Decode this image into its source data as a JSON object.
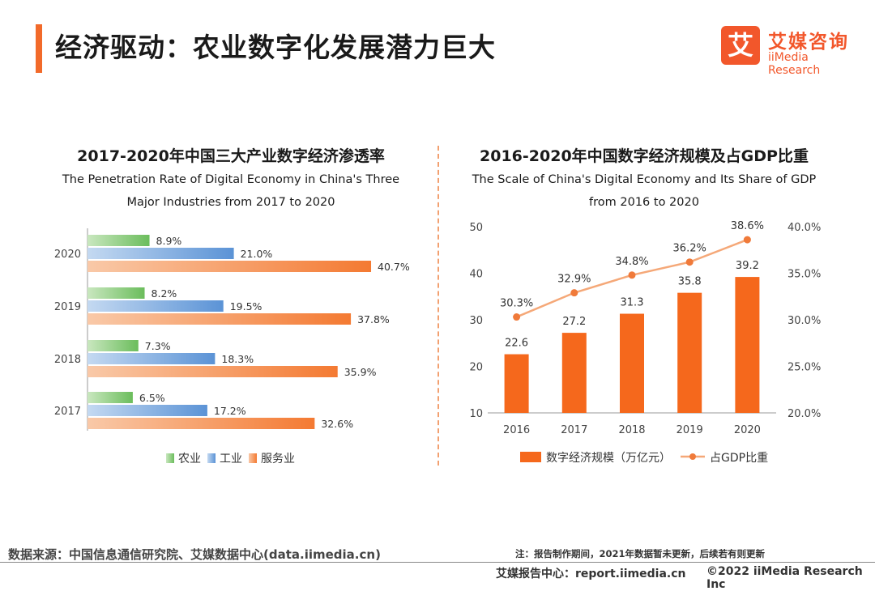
{
  "page": {
    "title": "经济驱动：农业数字化发展潜力巨大",
    "logo": {
      "mark": "艾",
      "name_cn": "艾媒咨询",
      "name_en": "iiMedia Research"
    },
    "source": "数据来源：中国信息通信研究院、艾媒数据中心(data.iimedia.cn)",
    "note": "注：报告制作期间，2021年数据暂未更新，后续若有则更新",
    "footer_site": "艾媒报告中心：report.iimedia.cn",
    "copyright": "©2022  iiMedia Research  Inc"
  },
  "colors": {
    "accent": "#f26a2a",
    "agriculture": "#7dc36a",
    "industry": "#6a9fd8",
    "service": "#f5843e",
    "line": "#f5a878"
  },
  "chart_data": [
    {
      "type": "bar",
      "orientation": "horizontal",
      "title": "2017-2020年中国三大产业数字经济渗透率",
      "subtitle_en": [
        "The Penetration Rate of Digital Economy in China's Three",
        "Major Industries from 2017 to 2020"
      ],
      "categories": [
        "2020",
        "2019",
        "2018",
        "2017"
      ],
      "series": [
        {
          "name": "农业",
          "values": [
            8.9,
            8.2,
            7.3,
            6.5
          ],
          "labels": [
            "8.9%",
            "8.2%",
            "7.3%",
            "6.5%"
          ]
        },
        {
          "name": "工业",
          "values": [
            21.0,
            19.5,
            18.3,
            17.2
          ],
          "labels": [
            "21.0%",
            "19.5%",
            "18.3%",
            "17.2%"
          ]
        },
        {
          "name": "服务业",
          "values": [
            40.7,
            37.8,
            35.9,
            32.6
          ],
          "labels": [
            "40.7%",
            "37.8%",
            "35.9%",
            "32.6%"
          ]
        }
      ],
      "xlim": [
        0,
        50
      ],
      "legend": "bottom",
      "grid": false
    },
    {
      "type": "bar+line",
      "title": "2016-2020年中国数字经济规模及占GDP比重",
      "subtitle_en": [
        "The Scale of China's Digital Economy and Its Share of GDP",
        "from 2016 to 2020"
      ],
      "categories": [
        "2016",
        "2017",
        "2018",
        "2019",
        "2020"
      ],
      "bars": {
        "name": "数字经济规模（万亿元）",
        "values": [
          22.6,
          27.2,
          31.3,
          35.8,
          39.2
        ],
        "labels": [
          "22.6",
          "27.2",
          "31.3",
          "35.8",
          "39.2"
        ]
      },
      "line": {
        "name": "占GDP比重",
        "values": [
          30.3,
          32.9,
          34.8,
          36.2,
          38.6
        ],
        "labels": [
          "30.3%",
          "32.9%",
          "34.8%",
          "36.2%",
          "38.6%"
        ]
      },
      "ylim_left": [
        10,
        50
      ],
      "yticks_left": [
        "10",
        "20",
        "30",
        "40",
        "50"
      ],
      "ylim_right": [
        20,
        40
      ],
      "yticks_right": [
        "20.0%",
        "25.0%",
        "30.0%",
        "35.0%",
        "40.0%"
      ],
      "legend": "bottom",
      "grid": false
    }
  ]
}
